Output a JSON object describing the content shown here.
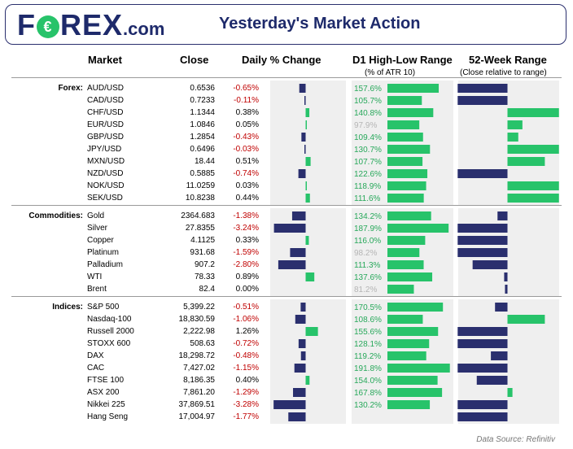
{
  "header": {
    "logo_brand": "FOREX",
    "logo_domain": ".com",
    "title": "Yesterday's Market Action"
  },
  "columns": {
    "market": "Market",
    "close": "Close",
    "daily": "Daily % Change",
    "d1": "D1 High-Low Range",
    "d1_sub": "(% of ATR 10)",
    "w52": "52-Week Range",
    "w52_sub": "(Close relative to range)"
  },
  "colors": {
    "negative_bar": "#2a2f6e",
    "positive_bar": "#27c36a",
    "negative_text": "#c00000",
    "atr_text": "#27a85a",
    "atr_dim_text": "#b5b5b5"
  },
  "chart_data": {
    "type": "table",
    "groups": [
      {
        "name": "Forex:",
        "rows": [
          {
            "market": "AUD/USD",
            "close": "0.6536",
            "daily": "-0.65%",
            "daily_value": -0.65,
            "atr": "157.6%",
            "atr_value": 157.6,
            "w52": -0.6
          },
          {
            "market": "CAD/USD",
            "close": "0.7233",
            "daily": "-0.11%",
            "daily_value": -0.11,
            "atr": "105.7%",
            "atr_value": 105.7,
            "w52": -0.6
          },
          {
            "market": "CHF/USD",
            "close": "1.1344",
            "daily": "0.38%",
            "daily_value": 0.38,
            "atr": "140.8%",
            "atr_value": 140.8,
            "w52": 0.62
          },
          {
            "market": "EUR/USD",
            "close": "1.0846",
            "daily": "0.05%",
            "daily_value": 0.05,
            "atr": "97.9%",
            "atr_value": 97.9,
            "w52": 0.18
          },
          {
            "market": "GBP/USD",
            "close": "1.2854",
            "daily": "-0.43%",
            "daily_value": -0.43,
            "atr": "109.4%",
            "atr_value": 109.4,
            "w52": 0.13
          },
          {
            "market": "JPY/USD",
            "close": "0.6496",
            "daily": "-0.03%",
            "daily_value": -0.03,
            "atr": "130.7%",
            "atr_value": 130.7,
            "w52": 0.62
          },
          {
            "market": "MXN/USD",
            "close": "18.44",
            "daily": "0.51%",
            "daily_value": 0.51,
            "atr": "107.7%",
            "atr_value": 107.7,
            "w52": 0.45
          },
          {
            "market": "NZD/USD",
            "close": "0.5885",
            "daily": "-0.74%",
            "daily_value": -0.74,
            "atr": "122.6%",
            "atr_value": 122.6,
            "w52": -0.6
          },
          {
            "market": "NOK/USD",
            "close": "11.0259",
            "daily": "0.03%",
            "daily_value": 0.03,
            "atr": "118.9%",
            "atr_value": 118.9,
            "w52": 0.62
          },
          {
            "market": "SEK/USD",
            "close": "10.8238",
            "daily": "0.44%",
            "daily_value": 0.44,
            "atr": "111.6%",
            "atr_value": 111.6,
            "w52": 0.62
          }
        ]
      },
      {
        "name": "Commodities:",
        "rows": [
          {
            "market": "Gold",
            "close": "2364.683",
            "daily": "-1.38%",
            "daily_value": -1.38,
            "atr": "134.2%",
            "atr_value": 134.2,
            "w52": -0.12
          },
          {
            "market": "Silver",
            "close": "27.8355",
            "daily": "-3.24%",
            "daily_value": -3.24,
            "atr": "187.9%",
            "atr_value": 187.9,
            "w52": -0.6
          },
          {
            "market": "Copper",
            "close": "4.1125",
            "daily": "0.33%",
            "daily_value": 0.33,
            "atr": "116.0%",
            "atr_value": 116.0,
            "w52": -0.6
          },
          {
            "market": "Platinum",
            "close": "931.68",
            "daily": "-1.59%",
            "daily_value": -1.59,
            "atr": "98.2%",
            "atr_value": 98.2,
            "w52": -0.6
          },
          {
            "market": "Palladium",
            "close": "907.2",
            "daily": "-2.80%",
            "daily_value": -2.8,
            "atr": "111.3%",
            "atr_value": 111.3,
            "w52": -0.42
          },
          {
            "market": "WTI",
            "close": "78.33",
            "daily": "0.89%",
            "daily_value": 0.89,
            "atr": "137.6%",
            "atr_value": 137.6,
            "w52": -0.04
          },
          {
            "market": "Brent",
            "close": "82.4",
            "daily": "0.00%",
            "daily_value": 0.0,
            "atr": "81.2%",
            "atr_value": 81.2,
            "w52": -0.03
          }
        ]
      },
      {
        "name": "Indices:",
        "rows": [
          {
            "market": "S&P 500",
            "close": "5,399.22",
            "daily": "-0.51%",
            "daily_value": -0.51,
            "atr": "170.5%",
            "atr_value": 170.5,
            "w52": -0.15
          },
          {
            "market": "Nasdaq-100",
            "close": "18,830.59",
            "daily": "-1.06%",
            "daily_value": -1.06,
            "atr": "108.6%",
            "atr_value": 108.6,
            "w52": 0.45
          },
          {
            "market": "Russell 2000",
            "close": "2,222.98",
            "daily": "1.26%",
            "daily_value": 1.26,
            "atr": "155.6%",
            "atr_value": 155.6,
            "w52": -0.6
          },
          {
            "market": "STOXX 600",
            "close": "508.63",
            "daily": "-0.72%",
            "daily_value": -0.72,
            "atr": "128.1%",
            "atr_value": 128.1,
            "w52": -0.6
          },
          {
            "market": "DAX",
            "close": "18,298.72",
            "daily": "-0.48%",
            "daily_value": -0.48,
            "atr": "119.2%",
            "atr_value": 119.2,
            "w52": -0.2
          },
          {
            "market": "CAC",
            "close": "7,427.02",
            "daily": "-1.15%",
            "daily_value": -1.15,
            "atr": "191.8%",
            "atr_value": 191.8,
            "w52": -0.6
          },
          {
            "market": "FTSE 100",
            "close": "8,186.35",
            "daily": "0.40%",
            "daily_value": 0.4,
            "atr": "154.0%",
            "atr_value": 154.0,
            "w52": -0.37
          },
          {
            "market": "ASX 200",
            "close": "7,861.20",
            "daily": "-1.29%",
            "daily_value": -1.29,
            "atr": "167.8%",
            "atr_value": 167.8,
            "w52": 0.06
          },
          {
            "market": "Nikkei 225",
            "close": "37,869.51",
            "daily": "-3.28%",
            "daily_value": -3.28,
            "atr": "130.2%",
            "atr_value": 130.2,
            "w52": -0.6
          },
          {
            "market": "Hang Seng",
            "close": "17,004.97",
            "daily": "-1.77%",
            "daily_value": -1.77,
            "atr": "",
            "atr_value": null,
            "w52": -0.6
          }
        ]
      }
    ]
  },
  "footer": {
    "source": "Data Source: Refinitiv"
  }
}
